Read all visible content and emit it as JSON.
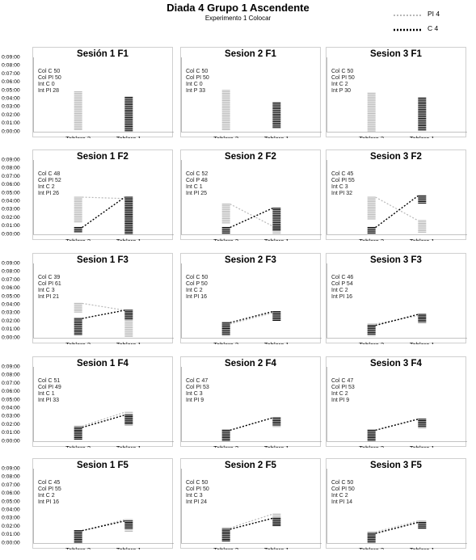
{
  "header": {
    "title": "Diada 4 Grupo 1 Ascendente",
    "subtitle": "Experimento 1 Colocar"
  },
  "legend": {
    "items": [
      {
        "label": "PI 4",
        "color": "#b8b8b8",
        "style": "dotted-gray"
      },
      {
        "label": "C 4",
        "color": "#000000",
        "style": "dotted-black"
      }
    ]
  },
  "colors": {
    "pi": "#b8b8b8",
    "c": "#000000",
    "border": "#d0d0d0"
  },
  "chart_data": [
    {
      "type": "scatter",
      "title": "Sesión 1 F1",
      "stats": [
        "Col C 50",
        "Col PI 50",
        "Int C 0",
        "Int PI 28"
      ],
      "categories": [
        "Tablero 2",
        "Tablero 1"
      ],
      "ylim": [
        "0:00:00",
        "0:09:00"
      ],
      "yticks": [
        "0:00:00",
        "0:01:00",
        "0:02:00",
        "0:03:00",
        "0:04:00",
        "0:05:00",
        "0:06:00",
        "0:07:00",
        "0:08:00",
        "0:09:00"
      ],
      "series": [
        {
          "name": "PI 4",
          "category": "Tablero 2",
          "range": [
            "0:00:05",
            "0:04:50"
          ]
        },
        {
          "name": "C 4",
          "category": "Tablero 1",
          "range": [
            "0:00:05",
            "0:04:10"
          ]
        }
      ]
    },
    {
      "type": "scatter",
      "title": "Sesion 2 F1",
      "stats": [
        "Col C 50",
        "Col PI 50",
        "Int C 0",
        "Int P 33"
      ],
      "categories": [
        "Tablero 2",
        "Tablero 1"
      ],
      "ylim": [
        "0:00:00",
        "0:09:00"
      ],
      "series": [
        {
          "name": "PI 4",
          "category": "Tablero 2",
          "range": [
            "0:00:05",
            "0:05:00"
          ]
        },
        {
          "name": "C 4",
          "category": "Tablero 1",
          "range": [
            "0:00:20",
            "0:03:30"
          ]
        }
      ]
    },
    {
      "type": "scatter",
      "title": "Sesion 3 F1",
      "stats": [
        "Col C 50",
        "Col PI 50",
        "Int C 2",
        "Int P 30"
      ],
      "categories": [
        "Tablero 2",
        "Tablero 1"
      ],
      "ylim": [
        "0:00:00",
        "0:09:00"
      ],
      "series": [
        {
          "name": "PI 4",
          "category": "Tablero 2",
          "range": [
            "0:00:05",
            "0:04:40"
          ]
        },
        {
          "name": "C 4",
          "category": "Tablero 1",
          "range": [
            "0:00:05",
            "0:04:05"
          ]
        }
      ]
    },
    {
      "type": "scatter",
      "title": "Sesion 1 F2",
      "stats": [
        "Col C 48",
        "Col PI 52",
        "Int C 2",
        "Int PI 26"
      ],
      "categories": [
        "Tablero 2",
        "Tablero 1"
      ],
      "ylim": [
        "0:00:00",
        "0:09:00"
      ],
      "series": [
        {
          "name": "PI 4",
          "category": "Tablero 2",
          "range": [
            "0:01:30",
            "0:04:30"
          ]
        },
        {
          "name": "PI 4",
          "category": "Tablero 1",
          "range": [
            "0:00:05",
            "0:04:20"
          ]
        },
        {
          "name": "C 4",
          "category": "Tablero 2",
          "range": [
            "0:00:10",
            "0:00:50"
          ]
        },
        {
          "name": "C 4",
          "category": "Tablero 1",
          "range": [
            "0:00:05",
            "0:04:30"
          ]
        }
      ]
    },
    {
      "type": "scatter",
      "title": "Sesion 2 F2",
      "stats": [
        "Col C 52",
        "Col P 48",
        "Int C 1",
        "Int PI 25"
      ],
      "categories": [
        "Tablero 2",
        "Tablero 1"
      ],
      "ylim": [
        "0:00:00",
        "0:09:00"
      ],
      "series": [
        {
          "name": "PI 4",
          "category": "Tablero 2",
          "range": [
            "0:01:20",
            "0:03:40"
          ]
        },
        {
          "name": "PI 4",
          "category": "Tablero 1",
          "range": [
            "0:00:05",
            "0:01:00"
          ]
        },
        {
          "name": "C 4",
          "category": "Tablero 2",
          "range": [
            "0:00:05",
            "0:00:50"
          ]
        },
        {
          "name": "C 4",
          "category": "Tablero 1",
          "range": [
            "0:00:30",
            "0:03:10"
          ]
        }
      ]
    },
    {
      "type": "scatter",
      "title": "Sesion 3 F2",
      "stats": [
        "Col C 45",
        "Col PI 55",
        "Int C 3",
        "Int PI 32"
      ],
      "categories": [
        "Tablero 2",
        "Tablero 1"
      ],
      "ylim": [
        "0:00:00",
        "0:09:00"
      ],
      "series": [
        {
          "name": "PI 4",
          "category": "Tablero 2",
          "range": [
            "0:01:50",
            "0:04:30"
          ]
        },
        {
          "name": "PI 4",
          "category": "Tablero 1",
          "range": [
            "0:00:05",
            "0:01:40"
          ]
        },
        {
          "name": "C 4",
          "category": "Tablero 2",
          "range": [
            "0:00:05",
            "0:00:50"
          ]
        },
        {
          "name": "C 4",
          "category": "Tablero 1",
          "range": [
            "0:03:40",
            "0:04:40"
          ]
        }
      ]
    },
    {
      "type": "scatter",
      "title": "Sesion 1 F3",
      "stats": [
        "Col C 39",
        "Col PI 61",
        "Int C 3",
        "Int PI 21"
      ],
      "categories": [
        "Tablero 2",
        "Tablero 1"
      ],
      "ylim": [
        "0:00:00",
        "0:09:00"
      ],
      "series": [
        {
          "name": "PI 4",
          "category": "Tablero 2",
          "range": [
            "0:03:00",
            "0:04:10"
          ]
        },
        {
          "name": "PI 4",
          "category": "Tablero 1",
          "range": [
            "0:00:05",
            "0:03:20"
          ]
        },
        {
          "name": "C 4",
          "category": "Tablero 2",
          "range": [
            "0:00:20",
            "0:02:20"
          ]
        },
        {
          "name": "C 4",
          "category": "Tablero 1",
          "range": [
            "0:02:10",
            "0:03:20"
          ]
        }
      ]
    },
    {
      "type": "scatter",
      "title": "Sesion 2 F3",
      "stats": [
        "Col C 50",
        "Col P 50",
        "Int C 2",
        "Int PI 16"
      ],
      "categories": [
        "Tablero 2",
        "Tablero 1"
      ],
      "ylim": [
        "0:00:00",
        "0:09:00"
      ],
      "series": [
        {
          "name": "PI 4",
          "category": "Tablero 2",
          "range": [
            "0:00:10",
            "0:01:40"
          ]
        },
        {
          "name": "PI 4",
          "category": "Tablero 1",
          "range": [
            "0:02:00",
            "0:03:00"
          ]
        },
        {
          "name": "C 4",
          "category": "Tablero 2",
          "range": [
            "0:00:20",
            "0:01:50"
          ]
        },
        {
          "name": "C 4",
          "category": "Tablero 1",
          "range": [
            "0:02:00",
            "0:03:10"
          ]
        }
      ]
    },
    {
      "type": "scatter",
      "title": "Sesion 3 F3",
      "stats": [
        "Col C 46",
        "Col P 54",
        "Int C 2",
        "Int PI 16"
      ],
      "categories": [
        "Tablero 2",
        "Tablero 1"
      ],
      "ylim": [
        "0:00:00",
        "0:09:00"
      ],
      "series": [
        {
          "name": "PI 4",
          "category": "Tablero 2",
          "range": [
            "0:00:05",
            "0:01:40"
          ]
        },
        {
          "name": "PI 4",
          "category": "Tablero 1",
          "range": [
            "0:01:40",
            "0:02:40"
          ]
        },
        {
          "name": "C 4",
          "category": "Tablero 2",
          "range": [
            "0:00:20",
            "0:01:30"
          ]
        },
        {
          "name": "C 4",
          "category": "Tablero 1",
          "range": [
            "0:01:50",
            "0:02:50"
          ]
        }
      ]
    },
    {
      "type": "scatter",
      "title": "Sesion 1 F4",
      "stats": [
        "Col C 51",
        "Col PI 49",
        "Int C 1",
        "Int PI 33"
      ],
      "categories": [
        "Tablero 2",
        "Tablero 1"
      ],
      "ylim": [
        "0:00:00",
        "0:09:00"
      ],
      "series": [
        {
          "name": "PI 4",
          "category": "Tablero 2",
          "range": [
            "0:00:10",
            "0:01:50"
          ]
        },
        {
          "name": "PI 4",
          "category": "Tablero 1",
          "range": [
            "0:01:50",
            "0:03:30"
          ]
        },
        {
          "name": "C 4",
          "category": "Tablero 2",
          "range": [
            "0:00:05",
            "0:01:40"
          ]
        },
        {
          "name": "C 4",
          "category": "Tablero 1",
          "range": [
            "0:02:00",
            "0:03:10"
          ]
        }
      ]
    },
    {
      "type": "scatter",
      "title": "Sesion 2 F4",
      "stats": [
        "Col C 47",
        "Col PI 53",
        "Int C 3",
        "Int PI 9"
      ],
      "categories": [
        "Tablero 2",
        "Tablero 1"
      ],
      "ylim": [
        "0:00:00",
        "0:09:00"
      ],
      "series": [
        {
          "name": "PI 4",
          "category": "Tablero 2",
          "range": [
            "0:00:10",
            "0:01:20"
          ]
        },
        {
          "name": "PI 4",
          "category": "Tablero 1",
          "range": [
            "0:01:40",
            "0:02:50"
          ]
        },
        {
          "name": "C 4",
          "category": "Tablero 2",
          "range": [
            "0:00:05",
            "0:01:20"
          ]
        },
        {
          "name": "C 4",
          "category": "Tablero 1",
          "range": [
            "0:01:50",
            "0:02:50"
          ]
        }
      ]
    },
    {
      "type": "scatter",
      "title": "Sesion 3 F4",
      "stats": [
        "Col C 47",
        "Col PI 53",
        "Int C 2",
        "Int PI 9"
      ],
      "categories": [
        "Tablero 2",
        "Tablero 1"
      ],
      "ylim": [
        "0:00:00",
        "0:09:00"
      ],
      "series": [
        {
          "name": "PI 4",
          "category": "Tablero 2",
          "range": [
            "0:00:10",
            "0:01:20"
          ]
        },
        {
          "name": "PI 4",
          "category": "Tablero 1",
          "range": [
            "0:01:30",
            "0:02:40"
          ]
        },
        {
          "name": "C 4",
          "category": "Tablero 2",
          "range": [
            "0:00:05",
            "0:01:20"
          ]
        },
        {
          "name": "C 4",
          "category": "Tablero 1",
          "range": [
            "0:01:40",
            "0:02:40"
          ]
        }
      ]
    },
    {
      "type": "scatter",
      "title": "Sesion 1 F5",
      "stats": [
        "Col C 45",
        "Col PI 55",
        "Int C 2",
        "Int PI 16"
      ],
      "categories": [
        "Tablero 2",
        "Tablero 1"
      ],
      "ylim": [
        "0:00:00",
        "0:09:00"
      ],
      "series": [
        {
          "name": "PI 4",
          "category": "Tablero 2",
          "range": [
            "0:00:05",
            "0:01:30"
          ]
        },
        {
          "name": "PI 4",
          "category": "Tablero 1",
          "range": [
            "0:01:20",
            "0:02:50"
          ]
        },
        {
          "name": "C 4",
          "category": "Tablero 2",
          "range": [
            "0:00:05",
            "0:01:30"
          ]
        },
        {
          "name": "C 4",
          "category": "Tablero 1",
          "range": [
            "0:01:40",
            "0:02:40"
          ]
        }
      ]
    },
    {
      "type": "scatter",
      "title": "Sesion 2 F5",
      "stats": [
        "Col C 50",
        "Col PI 50",
        "Int C 3",
        "Int PI 24"
      ],
      "categories": [
        "Tablero 2",
        "Tablero 1"
      ],
      "ylim": [
        "0:00:00",
        "0:09:00"
      ],
      "series": [
        {
          "name": "PI 4",
          "category": "Tablero 2",
          "range": [
            "0:00:10",
            "0:01:50"
          ]
        },
        {
          "name": "PI 4",
          "category": "Tablero 1",
          "range": [
            "0:02:00",
            "0:03:30"
          ]
        },
        {
          "name": "C 4",
          "category": "Tablero 2",
          "range": [
            "0:00:05",
            "0:01:40"
          ]
        },
        {
          "name": "C 4",
          "category": "Tablero 1",
          "range": [
            "0:02:00",
            "0:03:00"
          ]
        }
      ]
    },
    {
      "type": "scatter",
      "title": "Sesion 3 F5",
      "stats": [
        "Col C 50",
        "Col PI 50",
        "Int C 2",
        "Int PI 14"
      ],
      "categories": [
        "Tablero 2",
        "Tablero 1"
      ],
      "ylim": [
        "0:00:00",
        "0:09:00"
      ],
      "series": [
        {
          "name": "PI 4",
          "category": "Tablero 2",
          "range": [
            "0:00:10",
            "0:01:20"
          ]
        },
        {
          "name": "PI 4",
          "category": "Tablero 1",
          "range": [
            "0:01:40",
            "0:02:40"
          ]
        },
        {
          "name": "C 4",
          "category": "Tablero 2",
          "range": [
            "0:00:05",
            "0:01:10"
          ]
        },
        {
          "name": "C 4",
          "category": "Tablero 1",
          "range": [
            "0:01:40",
            "0:02:30"
          ]
        }
      ]
    }
  ]
}
